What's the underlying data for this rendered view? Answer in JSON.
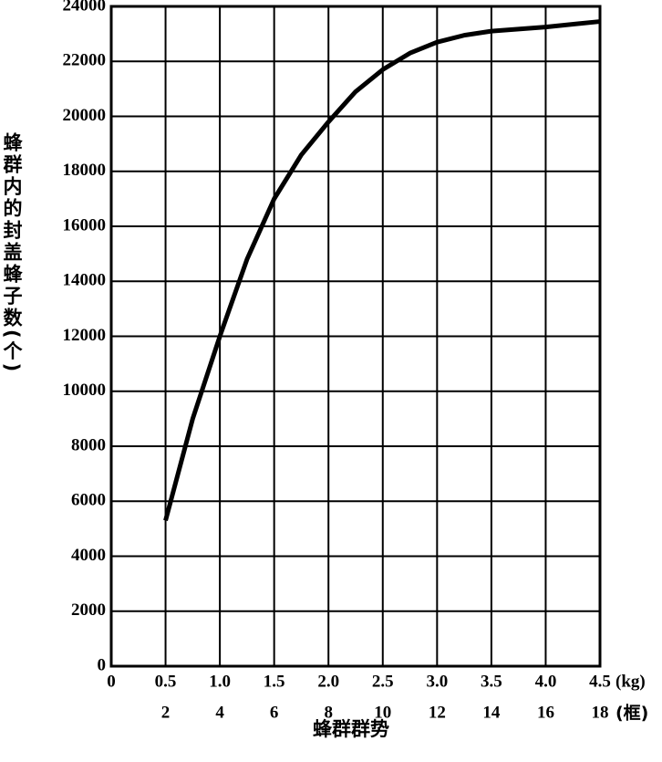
{
  "chart_data": {
    "type": "line",
    "ylabel": "蜂群内的封盖蜂子数(个)",
    "xlabel": "蜂群群势",
    "x_unit": "(kg)",
    "x2_unit": "(框)",
    "x": [
      0.5,
      0.75,
      1.0,
      1.25,
      1.5,
      1.75,
      2.0,
      2.25,
      2.5,
      2.75,
      3.0,
      3.25,
      3.5,
      4.0,
      4.5
    ],
    "values": [
      5300,
      9000,
      12000,
      14800,
      17000,
      18600,
      19800,
      20900,
      21700,
      22300,
      22700,
      22950,
      23100,
      23250,
      23450
    ],
    "color": "#000000",
    "xlim": [
      0,
      4.5
    ],
    "xticks": [
      0,
      0.5,
      {
        "value": 1,
        "label": "1.0"
      },
      1.5,
      {
        "value": 2,
        "label": "2.0"
      },
      2.5,
      {
        "value": 3,
        "label": "3.0"
      },
      3.5,
      {
        "value": 4,
        "label": "4.0"
      },
      4.5
    ],
    "x2lim": [
      0,
      18
    ],
    "x2ticks": [
      2,
      4,
      6,
      8,
      10,
      12,
      14,
      16,
      18
    ],
    "ylim": [
      0,
      24000
    ],
    "yticks": [
      0,
      2000,
      4000,
      6000,
      8000,
      10000,
      12000,
      14000,
      16000,
      18000,
      20000,
      22000,
      24000
    ],
    "grid": true
  }
}
